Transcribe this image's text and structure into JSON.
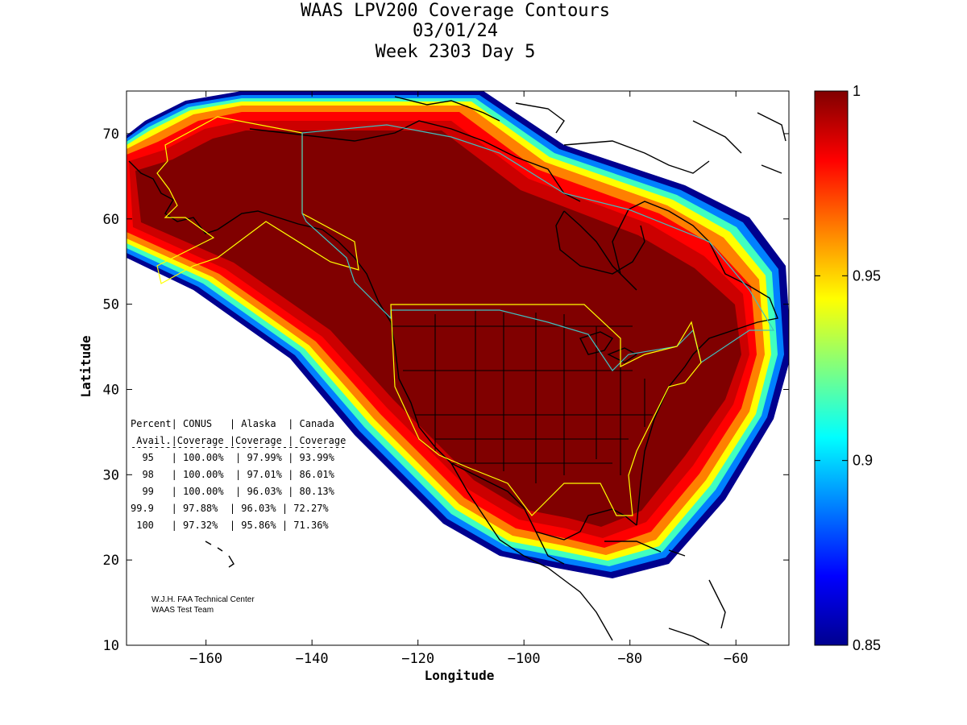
{
  "chart_data": {
    "type": "heatmap",
    "title_lines": [
      "WAAS LPV200 Coverage Contours",
      "03/01/24",
      "Week 2303 Day 5"
    ],
    "xlabel": "Longitude",
    "ylabel": "Latitude",
    "xlim": [
      -175,
      -50
    ],
    "ylim": [
      10,
      75
    ],
    "xticks": [
      -160,
      -140,
      -120,
      -100,
      -80,
      -60
    ],
    "yticks": [
      10,
      20,
      30,
      40,
      50,
      60,
      70
    ],
    "grid": false,
    "colorbar": {
      "colormap": "jet",
      "range": [
        0.85,
        1
      ],
      "ticks": [
        0.85,
        0.9,
        0.95,
        1
      ],
      "tick_labels": [
        "0.85",
        "0.9",
        "0.95",
        "1"
      ]
    },
    "coverage_table": {
      "header_lines": [
        "Percent| CONUS   | Alaska  | Canada",
        " Avail.|Coverage |Coverage | Coverage"
      ],
      "rule": "-------------------------------------",
      "rows": [
        {
          "availability": "95",
          "conus": "100.00%",
          "alaska": "97.99%",
          "canada": "93.99%"
        },
        {
          "availability": "98",
          "conus": "100.00%",
          "alaska": "97.01%",
          "canada": "86.01%"
        },
        {
          "availability": "99",
          "conus": "100.00%",
          "alaska": "96.03%",
          "canada": "80.13%"
        },
        {
          "availability": "99.9",
          "conus": "97.88%",
          "alaska": "96.03%",
          "canada": "72.27%"
        },
        {
          "availability": "100",
          "conus": "97.32%",
          "alaska": "95.86%",
          "canada": "71.36%"
        }
      ],
      "row_lines": [
        "  95   | 100.00%  | 97.99% | 93.99%",
        "  98   | 100.00%  | 97.01% | 86.01%",
        "  99   | 100.00%  | 96.03% | 80.13%",
        "99.9   | 97.88%  | 96.03% | 72.27%",
        " 100   | 97.32%  | 95.86% | 71.36%"
      ]
    },
    "credits": [
      "W.J.H. FAA Technical Center",
      "WAAS Test Team"
    ]
  }
}
